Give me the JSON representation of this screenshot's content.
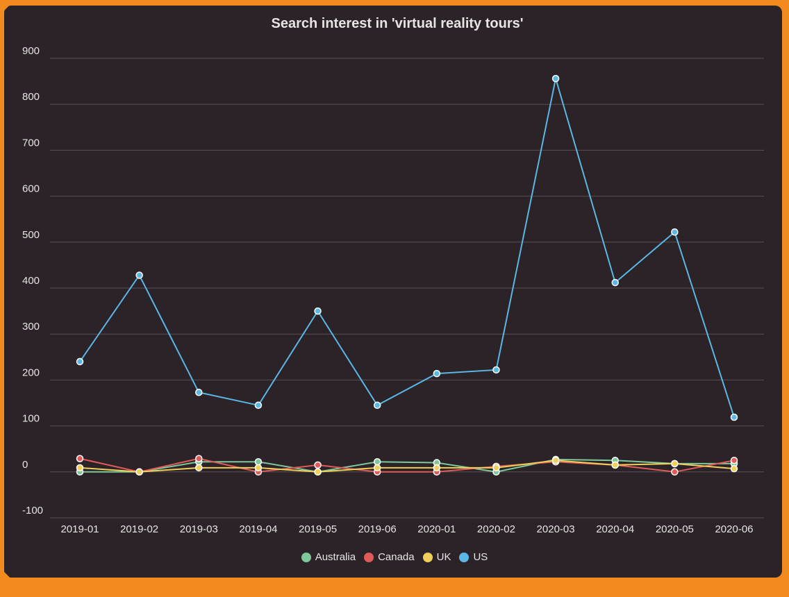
{
  "chart_data": {
    "type": "line",
    "title": "Search interest in 'virtual reality tours'",
    "categories": [
      "2019-01",
      "2019-02",
      "2019-03",
      "2019-04",
      "2019-05",
      "2019-06",
      "2020-01",
      "2020-02",
      "2020-03",
      "2020-04",
      "2020-05",
      "2020-06"
    ],
    "ylim": [
      -100,
      900
    ],
    "yticks": [
      -100,
      0,
      100,
      200,
      300,
      400,
      500,
      600,
      700,
      800,
      900
    ],
    "grid": true,
    "legend_position": "bottom",
    "series": [
      {
        "name": "Australia",
        "color": "#7ec89a",
        "values": [
          0,
          0,
          22,
          22,
          0,
          22,
          20,
          0,
          27,
          25,
          18,
          18
        ]
      },
      {
        "name": "Canada",
        "color": "#e05a5a",
        "values": [
          29,
          0,
          29,
          0,
          15,
          0,
          0,
          12,
          22,
          15,
          0,
          25
        ]
      },
      {
        "name": "UK",
        "color": "#f0cf5a",
        "values": [
          9,
          0,
          9,
          9,
          0,
          9,
          9,
          9,
          25,
          15,
          18,
          7
        ]
      },
      {
        "name": "US",
        "color": "#5ab7e6",
        "values": [
          240,
          428,
          173,
          145,
          350,
          145,
          214,
          222,
          856,
          412,
          522,
          119
        ]
      }
    ]
  }
}
